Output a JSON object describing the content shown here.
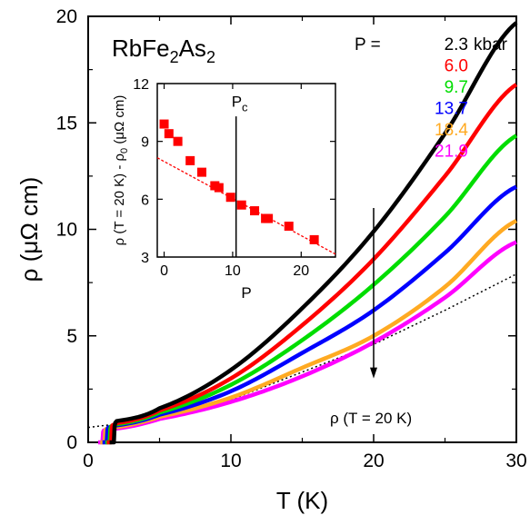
{
  "chart_data": {
    "type": "line",
    "title": "RbFe2As2",
    "xlabel": "T (K)",
    "ylabel": "ρ (μΩ cm)",
    "xlim": [
      0,
      30
    ],
    "ylim": [
      0,
      20
    ],
    "xticks": [
      "0",
      "10",
      "20",
      "30"
    ],
    "yticks": [
      "0",
      "5",
      "10",
      "15",
      "20"
    ],
    "legend_header": "P = ",
    "legend_unit": "kbar",
    "legend_placement": "top-right",
    "series": [
      {
        "name": "2.3",
        "color": "#000000",
        "Tc": 1.8,
        "x": [
          2,
          5,
          10,
          15,
          20,
          25,
          30
        ],
        "y": [
          1.0,
          1.6,
          3.4,
          6.3,
          9.9,
          14.5,
          19.7
        ]
      },
      {
        "name": "6.0",
        "color": "#ff0000",
        "Tc": 1.6,
        "x": [
          2,
          5,
          10,
          15,
          20,
          25,
          30
        ],
        "y": [
          0.9,
          1.5,
          3.0,
          5.5,
          8.6,
          12.5,
          16.8
        ]
      },
      {
        "name": "9.7",
        "color": "#00dd00",
        "Tc": 1.5,
        "x": [
          2,
          5,
          10,
          15,
          20,
          25,
          30
        ],
        "y": [
          0.85,
          1.4,
          2.7,
          4.8,
          7.4,
          10.6,
          14.4
        ]
      },
      {
        "name": "13.7",
        "color": "#0000ff",
        "Tc": 1.3,
        "x": [
          2,
          5,
          10,
          15,
          20,
          25,
          30
        ],
        "y": [
          0.8,
          1.3,
          2.4,
          4.2,
          6.2,
          8.9,
          12.0
        ]
      },
      {
        "name": "18.4",
        "color": "#ffaa22",
        "Tc": 1.15,
        "x": [
          2,
          5,
          10,
          15,
          20,
          25,
          30
        ],
        "y": [
          0.72,
          1.2,
          2.1,
          3.5,
          5.0,
          7.3,
          10.4
        ]
      },
      {
        "name": "21.9",
        "color": "#ff00ff",
        "Tc": 1.0,
        "x": [
          2,
          5,
          10,
          15,
          20,
          25,
          30
        ],
        "y": [
          0.65,
          1.1,
          1.9,
          3.1,
          4.7,
          6.8,
          9.4
        ]
      }
    ],
    "fit_line": {
      "x": [
        0,
        5,
        10,
        15,
        20,
        25,
        30
      ],
      "y": [
        0.7,
        1.1,
        2.0,
        3.3,
        4.6,
        6.2,
        7.9
      ],
      "style": "dotted"
    },
    "annotation": {
      "text": "ρ (T = 20 K)",
      "arrow_x": 20,
      "arrow_from_y": 11,
      "arrow_to_y": 3
    },
    "inset": {
      "type": "scatter",
      "xlabel": "P",
      "ylabel": "ρ (T = 20 K) - ρ0 (μΩ cm)",
      "xlim": [
        -1,
        25
      ],
      "ylim": [
        3,
        12
      ],
      "xticks": [
        "0",
        "10",
        "20"
      ],
      "yticks": [
        "3",
        "6",
        "9",
        "12"
      ],
      "points": {
        "x": [
          0.0,
          0.7,
          2.0,
          3.8,
          5.5,
          7.4,
          8.0,
          9.7,
          11.3,
          13.2,
          14.8,
          15.2,
          18.2,
          21.9
        ],
        "y": [
          9.9,
          9.4,
          9.0,
          8.0,
          7.4,
          6.7,
          6.6,
          6.1,
          5.7,
          5.4,
          5.0,
          5.0,
          4.6,
          3.9
        ]
      },
      "fit": {
        "x": [
          -1,
          25
        ],
        "y": [
          8.15,
          3.15
        ]
      },
      "pc": {
        "label": "P",
        "subscript": "c",
        "value": 10.5
      }
    }
  }
}
